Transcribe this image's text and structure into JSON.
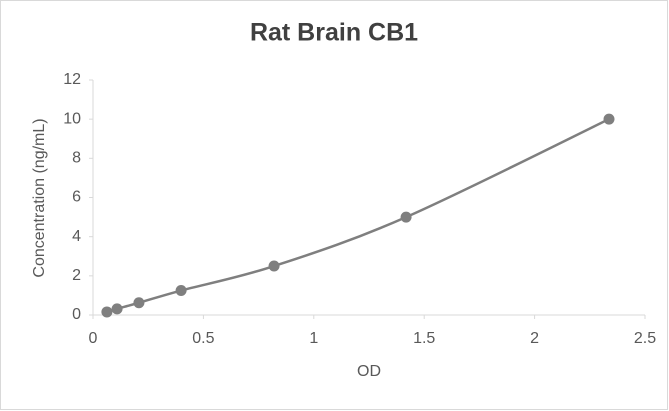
{
  "chart_data": {
    "type": "line",
    "title": "Rat Brain CB1",
    "x_label": "OD",
    "y_label": "Concentration (ng/mL)",
    "x": [
      0.063,
      0.109,
      0.208,
      0.399,
      0.82,
      1.418,
      2.337
    ],
    "values": [
      0.156,
      0.313,
      0.625,
      1.25,
      2.5,
      5,
      10
    ],
    "color": "#7f7f7f",
    "smooth": true,
    "markers": true,
    "grid": false,
    "xlim": [
      0,
      2.5
    ],
    "xticks": [
      0,
      0.5,
      1,
      1.5,
      2,
      2.5
    ],
    "ylim": [
      0,
      12
    ],
    "yticks": [
      0,
      2,
      4,
      6,
      8,
      10,
      12
    ]
  }
}
